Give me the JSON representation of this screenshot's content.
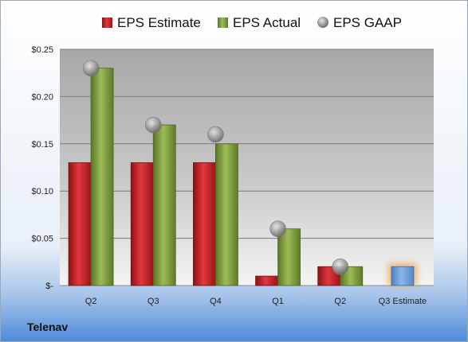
{
  "chart_data": {
    "type": "bar",
    "categories": [
      "Q2",
      "Q3",
      "Q4",
      "Q1",
      "Q2",
      "Q3 Estimate"
    ],
    "series": [
      {
        "name": "EPS Estimate",
        "values": [
          0.13,
          0.13,
          0.13,
          0.01,
          0.02,
          null
        ],
        "color": "#c0272d"
      },
      {
        "name": "EPS Actual",
        "values": [
          0.23,
          0.17,
          0.15,
          0.06,
          0.02,
          null
        ],
        "color": "#7c9a3b"
      },
      {
        "name": "EPS GAAP",
        "values": [
          0.23,
          0.17,
          0.16,
          0.06,
          0.02,
          null
        ],
        "color": "#9a9a9a"
      }
    ],
    "estimate_bar": {
      "category_index": 5,
      "value": 0.02,
      "color": "#6d9fd8",
      "glow": "#f0a040"
    },
    "yticks": [
      0,
      0.05,
      0.1,
      0.15,
      0.2,
      0.25
    ],
    "ytick_labels": [
      "$-",
      "$0.05",
      "$0.10",
      "$0.15",
      "$0.20",
      "$0.25"
    ],
    "ylim": [
      0,
      0.25
    ],
    "grid": true,
    "legend_position": "top",
    "footer_label": "Telenav"
  }
}
